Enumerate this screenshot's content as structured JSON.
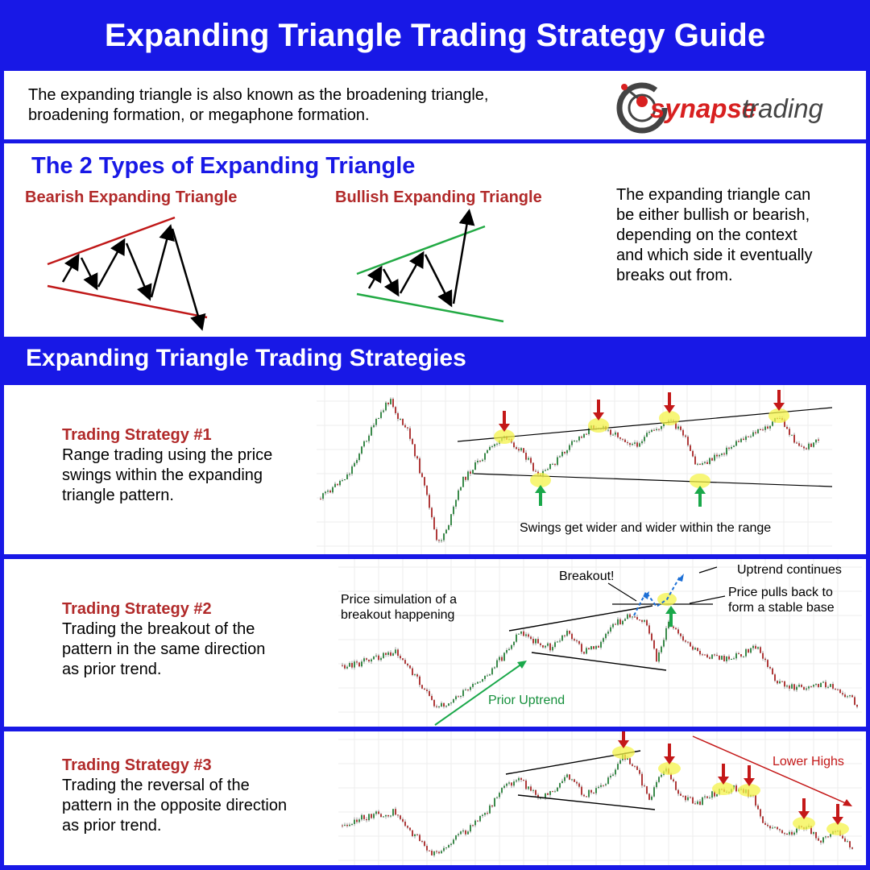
{
  "header": {
    "title": "Expanding Triangle Trading Strategy Guide"
  },
  "intro": {
    "text_line1": "The expanding triangle is also known as the broadening triangle,",
    "text_line2": "broadening formation, or megaphone formation.",
    "logo_prefix": "synapse",
    "logo_suffix": "trading"
  },
  "types": {
    "heading": "The 2 Types of Expanding Triangle",
    "bearish_label": "Bearish Expanding Triangle",
    "bullish_label": "Bullish Expanding Triangle",
    "description": [
      "The expanding triangle can",
      "be either bullish or bearish,",
      "depending on the context",
      "and which side it eventually",
      "breaks out from."
    ]
  },
  "strategies": {
    "heading": "Expanding Triangle Trading Strategies",
    "items": [
      {
        "title": "Trading Strategy #1",
        "lines": [
          "Range trading using the price",
          "swings within the expanding",
          "triangle pattern."
        ],
        "annotations": {
          "caption": "Swings get wider and wider within the range"
        }
      },
      {
        "title": "Trading Strategy #2",
        "lines": [
          "Trading the breakout of the",
          "pattern in the same direction",
          "as prior trend."
        ],
        "annotations": {
          "simulation_line1": "Price simulation of a",
          "simulation_line2": "breakout happening",
          "breakout": "Breakout!",
          "uptrend_continues": "Uptrend continues",
          "pullback_line1": "Price pulls back to",
          "pullback_line2": "form a stable base",
          "prior_uptrend": "Prior Uptrend"
        }
      },
      {
        "title": "Trading Strategy #3",
        "lines": [
          "Trading the reversal of the",
          "pattern in the opposite direction",
          "as prior trend."
        ],
        "annotations": {
          "lower_highs": "Lower Highs"
        }
      }
    ]
  },
  "colors": {
    "brand_blue": "#1818e6",
    "strategy_red": "#b12a2a",
    "bearish_line": "#c01818",
    "bullish_line": "#22aa44",
    "arrow_red": "#c41818",
    "arrow_green": "#1aa84a",
    "highlight_yellow": "#f4f34a"
  },
  "icons": [
    "synapse-logo-icon",
    "bearish-triangle-diagram",
    "bullish-triangle-diagram",
    "red-down-arrow-icon",
    "green-up-arrow-icon"
  ]
}
